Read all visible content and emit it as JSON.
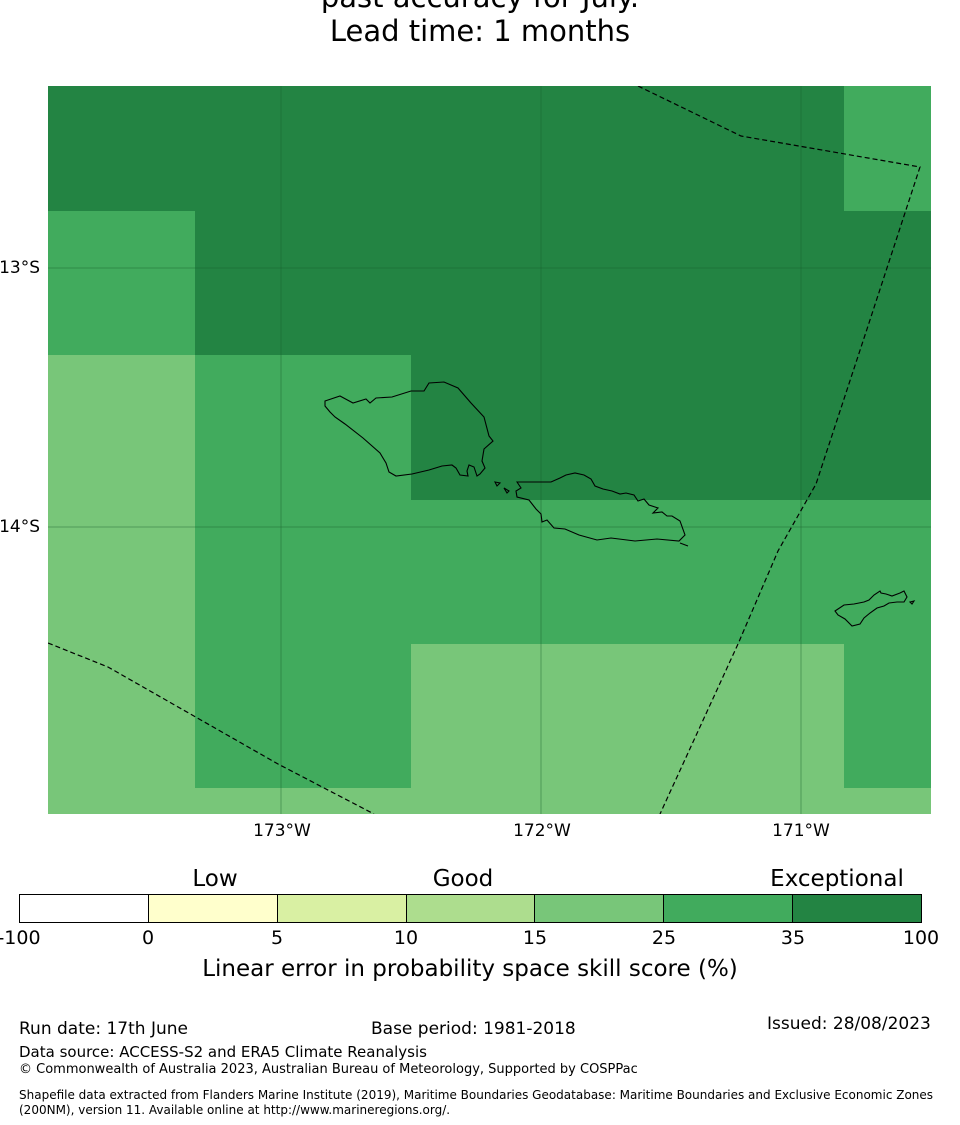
{
  "title": {
    "line1": "past accuracy for July.",
    "line2": "Lead time: 1 months"
  },
  "map": {
    "lat_labels": [
      "13°S",
      "14°S"
    ],
    "lon_labels": [
      "173°W",
      "172°W",
      "171°W"
    ],
    "skill_colors": {
      "band_15_25": "#78c679",
      "band_25_35": "#41ab5d",
      "band_35_100": "#238443"
    },
    "boundary_style": "dashed",
    "land_outline": "#000000"
  },
  "legend": {
    "categories": [
      "Low",
      "Good",
      "Exceptional"
    ],
    "ticks": [
      "-100",
      "0",
      "5",
      "10",
      "15",
      "25",
      "35",
      "100"
    ],
    "colors": [
      "#ffffff",
      "#ffffcc",
      "#d9f0a3",
      "#addd8e",
      "#78c679",
      "#41ab5d",
      "#238443"
    ],
    "label": "Linear error in probability space skill score (%)"
  },
  "footer": {
    "run_date": "Run date: 17th June",
    "base_period": "Base period: 1981-2018",
    "issued": "Issued: 28/08/2023",
    "data_source": "Data source: ACCESS-S2 and ERA5 Climate Reanalysis",
    "copyright": "© Commonwealth of Australia 2023, Australian Bureau of Meteorology, Supported by COSPPac",
    "shapefile_line1": "Shapefile data extracted from Flanders Marine Institute (2019), Maritime Boundaries Geodatabase: Maritime Boundaries and Exclusive Economic Zones",
    "shapefile_line2": "(200NM), version 11. Available online at http://www.marineregions.org/."
  }
}
